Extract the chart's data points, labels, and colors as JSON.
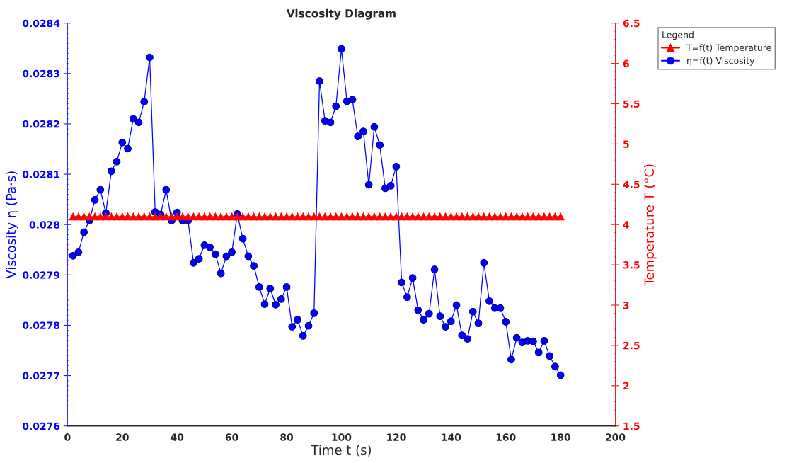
{
  "chart_data": {
    "type": "line",
    "title": "Viscosity Diagram",
    "xlabel": "Time t (s)",
    "ylabel": "Viscosity η (Pa·s)",
    "y2label": "Temperature T (°C)",
    "legend_title": "Legend",
    "x": [
      2,
      4,
      6,
      8,
      10,
      12,
      14,
      16,
      18,
      20,
      22,
      24,
      26,
      28,
      30,
      32,
      34,
      36,
      38,
      40,
      42,
      44,
      46,
      48,
      50,
      52,
      54,
      56,
      58,
      60,
      62,
      64,
      66,
      68,
      70,
      72,
      74,
      76,
      78,
      80,
      82,
      84,
      86,
      88,
      90,
      92,
      94,
      96,
      98,
      100,
      102,
      104,
      106,
      108,
      110,
      112,
      114,
      116,
      118,
      120,
      122,
      124,
      126,
      128,
      130,
      132,
      134,
      136,
      138,
      140,
      142,
      144,
      146,
      148,
      150,
      152,
      154,
      156,
      158,
      160,
      162,
      164,
      166,
      168,
      170,
      172,
      174,
      176,
      178,
      180
    ],
    "series": [
      {
        "name": "T=f(t) Temperature",
        "color": "#ff0000",
        "marker": "triangle",
        "axis": "y2",
        "values": [
          4.1,
          4.1,
          4.1,
          4.1,
          4.1,
          4.1,
          4.1,
          4.1,
          4.1,
          4.1,
          4.1,
          4.1,
          4.1,
          4.1,
          4.1,
          4.1,
          4.1,
          4.1,
          4.1,
          4.1,
          4.1,
          4.1,
          4.1,
          4.1,
          4.1,
          4.1,
          4.1,
          4.1,
          4.1,
          4.1,
          4.1,
          4.1,
          4.1,
          4.1,
          4.1,
          4.1,
          4.1,
          4.1,
          4.1,
          4.1,
          4.1,
          4.1,
          4.1,
          4.1,
          4.1,
          4.1,
          4.1,
          4.1,
          4.1,
          4.1,
          4.1,
          4.1,
          4.1,
          4.1,
          4.1,
          4.1,
          4.1,
          4.1,
          4.1,
          4.1,
          4.1,
          4.1,
          4.1,
          4.1,
          4.1,
          4.1,
          4.1,
          4.1,
          4.1,
          4.1,
          4.1,
          4.1,
          4.1,
          4.1,
          4.1,
          4.1,
          4.1,
          4.1,
          4.1,
          4.1,
          4.1,
          4.1,
          4.1,
          4.1,
          4.1,
          4.1,
          4.1,
          4.1,
          4.1,
          4.1
        ]
      },
      {
        "name": "η=f(t) Viscosity",
        "color": "#0000ff",
        "marker": "circle",
        "values": [
          0.027938,
          0.027945,
          0.027985,
          0.028008,
          0.028049,
          0.028069,
          0.028023,
          0.028106,
          0.028125,
          0.028163,
          0.028151,
          0.02821,
          0.028203,
          0.028244,
          0.028332,
          0.028025,
          0.02802,
          0.028069,
          0.028008,
          0.028024,
          0.028008,
          0.028008,
          0.027924,
          0.027932,
          0.027959,
          0.027955,
          0.027941,
          0.027903,
          0.027937,
          0.027945,
          0.028021,
          0.027972,
          0.027937,
          0.027918,
          0.027876,
          0.027842,
          0.027873,
          0.027841,
          0.027852,
          0.027876,
          0.027797,
          0.027811,
          0.027779,
          0.027799,
          0.027824,
          0.028285,
          0.028206,
          0.028203,
          0.028235,
          0.028349,
          0.028245,
          0.028248,
          0.028175,
          0.028185,
          0.028079,
          0.028194,
          0.028158,
          0.028072,
          0.028077,
          0.028115,
          0.027885,
          0.027856,
          0.027894,
          0.02783,
          0.027811,
          0.027823,
          0.027911,
          0.027818,
          0.027797,
          0.027808,
          0.02784,
          0.02778,
          0.027773,
          0.027827,
          0.027804,
          0.027924,
          0.027848,
          0.027834,
          0.027834,
          0.027807,
          0.027732,
          0.027775,
          0.027766,
          0.027769,
          0.027768,
          0.027746,
          0.027769,
          0.027739,
          0.027718,
          0.027701
        ]
      }
    ],
    "xlim": [
      0,
      200
    ],
    "xticks": [
      0,
      20,
      40,
      60,
      80,
      100,
      120,
      140,
      160,
      180,
      200
    ],
    "ylim": [
      0.0276,
      0.0284
    ],
    "yticks": [
      0.0276,
      0.0277,
      0.0278,
      0.0279,
      0.028,
      0.0281,
      0.0282,
      0.0283,
      0.0284
    ],
    "y2lim": [
      1.5,
      6.5
    ],
    "y2ticks": [
      1.5,
      2,
      2.5,
      3,
      3.5,
      4,
      4.5,
      5,
      5.5,
      6,
      6.5
    ],
    "legend": "right",
    "grid": false
  }
}
